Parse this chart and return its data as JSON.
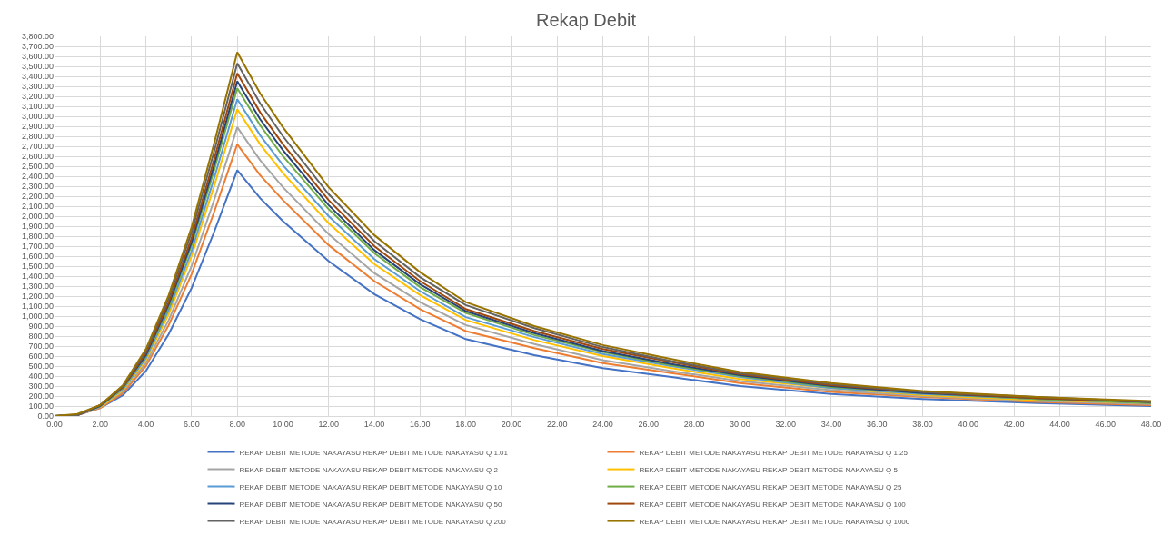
{
  "chart_data": {
    "type": "line",
    "title": "Rekap Debit",
    "x": [
      0,
      1,
      2,
      3,
      4,
      5,
      6,
      7,
      8,
      9,
      10,
      12,
      14,
      16,
      18,
      21,
      24,
      27,
      30,
      34,
      38,
      43,
      48
    ],
    "series": [
      {
        "name": "REKAP DEBIT METODE NAKAYASU REKAP DEBIT METODE NAKAYASU Q 1.01",
        "color": "#4472c4",
        "values": [
          0,
          10,
          80,
          210,
          450,
          820,
          1280,
          1850,
          2460,
          2180,
          1950,
          1550,
          1220,
          970,
          770,
          610,
          480,
          390,
          300,
          220,
          170,
          130,
          100
        ]
      },
      {
        "name": "REKAP DEBIT METODE NAKAYASU REKAP DEBIT METODE NAKAYASU Q 1.25",
        "color": "#ed7d31",
        "values": [
          0,
          10,
          80,
          230,
          500,
          910,
          1420,
          2050,
          2720,
          2410,
          2160,
          1710,
          1350,
          1070,
          850,
          680,
          530,
          430,
          330,
          240,
          190,
          140,
          110
        ]
      },
      {
        "name": "REKAP DEBIT METODE NAKAYASU REKAP DEBIT METODE NAKAYASU Q 2",
        "color": "#a5a5a5",
        "values": [
          0,
          10,
          90,
          250,
          530,
          960,
          1500,
          2170,
          2890,
          2560,
          2290,
          1820,
          1430,
          1140,
          910,
          720,
          560,
          450,
          350,
          260,
          200,
          150,
          120
        ]
      },
      {
        "name": "REKAP DEBIT METODE NAKAYASU REKAP DEBIT METODE NAKAYASU Q 5",
        "color": "#ffc000",
        "values": [
          null,
          null,
          90,
          260,
          560,
          1020,
          1600,
          2310,
          3070,
          2720,
          2430,
          1930,
          1520,
          1210,
          960,
          760,
          600,
          480,
          370,
          280,
          210,
          160,
          130
        ]
      },
      {
        "name": "REKAP DEBIT METODE NAKAYASU REKAP DEBIT METODE NAKAYASU Q 10",
        "color": "#5b9bd5",
        "values": [
          0,
          10,
          100,
          270,
          580,
          1060,
          1650,
          2390,
          3170,
          2810,
          2510,
          2000,
          1570,
          1250,
          990,
          790,
          620,
          500,
          390,
          280,
          220,
          170,
          130
        ]
      },
      {
        "name": "REKAP DEBIT METODE NAKAYASU REKAP DEBIT METODE NAKAYASU Q 25",
        "color": "#70ad47",
        "values": [
          0,
          10,
          100,
          280,
          600,
          1090,
          1710,
          2470,
          3280,
          2910,
          2600,
          2070,
          1630,
          1290,
          1030,
          810,
          640,
          510,
          400,
          290,
          230,
          170,
          130
        ]
      },
      {
        "name": "REKAP DEBIT METODE NAKAYASU REKAP DEBIT METODE NAKAYASU Q 50",
        "color": "#264478",
        "values": [
          0,
          10,
          100,
          290,
          610,
          1120,
          1740,
          2520,
          3350,
          2970,
          2660,
          2110,
          1660,
          1320,
          1050,
          830,
          650,
          520,
          410,
          300,
          230,
          180,
          140
        ]
      },
      {
        "name": "REKAP DEBIT METODE NAKAYASU REKAP DEBIT METODE NAKAYASU Q 100",
        "color": "#9e480e",
        "values": [
          0,
          10,
          110,
          290,
          630,
          1140,
          1780,
          2580,
          3430,
          3040,
          2720,
          2160,
          1700,
          1350,
          1070,
          850,
          670,
          540,
          420,
          310,
          240,
          180,
          140
        ]
      },
      {
        "name": "REKAP DEBIT METODE NAKAYASU REKAP DEBIT METODE NAKAYASU Q 200",
        "color": "#636363",
        "values": [
          0,
          10,
          110,
          300,
          650,
          1180,
          1840,
          2660,
          3530,
          3130,
          2800,
          2220,
          1750,
          1390,
          1110,
          880,
          690,
          550,
          430,
          320,
          240,
          190,
          140
        ]
      },
      {
        "name": "REKAP DEBIT METODE NAKAYASU REKAP DEBIT METODE NAKAYASU Q 1000",
        "color": "#997300",
        "values": [
          0,
          20,
          110,
          310,
          670,
          1210,
          1890,
          2740,
          3640,
          3230,
          2890,
          2290,
          1810,
          1440,
          1140,
          900,
          710,
          570,
          440,
          330,
          250,
          190,
          150
        ]
      }
    ],
    "xlim": [
      0,
      48
    ],
    "xticks": [
      {
        "value": 0,
        "label": "0.00"
      },
      {
        "value": 2,
        "label": "2.00"
      },
      {
        "value": 4,
        "label": "4.00"
      },
      {
        "value": 6,
        "label": "6.00"
      },
      {
        "value": 8,
        "label": "8.00"
      },
      {
        "value": 10,
        "label": "10.00"
      },
      {
        "value": 12,
        "label": "12.00"
      },
      {
        "value": 14,
        "label": "14.00"
      },
      {
        "value": 16,
        "label": "16.00"
      },
      {
        "value": 18,
        "label": "18.00"
      },
      {
        "value": 20,
        "label": "20.00"
      },
      {
        "value": 22,
        "label": "22.00"
      },
      {
        "value": 24,
        "label": "24.00"
      },
      {
        "value": 26,
        "label": "26.00"
      },
      {
        "value": 28,
        "label": "28.00"
      },
      {
        "value": 30,
        "label": "30.00"
      },
      {
        "value": 32,
        "label": "32.00"
      },
      {
        "value": 34,
        "label": "34.00"
      },
      {
        "value": 36,
        "label": "36.00"
      },
      {
        "value": 38,
        "label": "38.00"
      },
      {
        "value": 40,
        "label": "40.00"
      },
      {
        "value": 42,
        "label": "42.00"
      },
      {
        "value": 44,
        "label": "44.00"
      },
      {
        "value": 46,
        "label": "46.00"
      },
      {
        "value": 48,
        "label": "48.00"
      }
    ],
    "ylim": [
      0,
      3800
    ],
    "yticks": [
      {
        "value": 0,
        "label": "0.00"
      },
      {
        "value": 100,
        "label": "100.00"
      },
      {
        "value": 200,
        "label": "200.00"
      },
      {
        "value": 300,
        "label": "300.00"
      },
      {
        "value": 400,
        "label": "400.00"
      },
      {
        "value": 500,
        "label": "500.00"
      },
      {
        "value": 600,
        "label": "600.00"
      },
      {
        "value": 700,
        "label": "700.00"
      },
      {
        "value": 800,
        "label": "800.00"
      },
      {
        "value": 900,
        "label": "900.00"
      },
      {
        "value": 1000,
        "label": "1,000.00"
      },
      {
        "value": 1100,
        "label": "1,100.00"
      },
      {
        "value": 1200,
        "label": "1,200.00"
      },
      {
        "value": 1300,
        "label": "1,300.00"
      },
      {
        "value": 1400,
        "label": "1,400.00"
      },
      {
        "value": 1500,
        "label": "1,500.00"
      },
      {
        "value": 1600,
        "label": "1,600.00"
      },
      {
        "value": 1700,
        "label": "1,700.00"
      },
      {
        "value": 1800,
        "label": "1,800.00"
      },
      {
        "value": 1900,
        "label": "1,900.00"
      },
      {
        "value": 2000,
        "label": "2,000.00"
      },
      {
        "value": 2100,
        "label": "2,100.00"
      },
      {
        "value": 2200,
        "label": "2,200.00"
      },
      {
        "value": 2300,
        "label": "2,300.00"
      },
      {
        "value": 2400,
        "label": "2,400.00"
      },
      {
        "value": 2500,
        "label": "2,500.00"
      },
      {
        "value": 2600,
        "label": "2,600.00"
      },
      {
        "value": 2700,
        "label": "2,700.00"
      },
      {
        "value": 2800,
        "label": "2,800.00"
      },
      {
        "value": 2900,
        "label": "2,900.00"
      },
      {
        "value": 3000,
        "label": "3,000.00"
      },
      {
        "value": 3100,
        "label": "3,100.00"
      },
      {
        "value": 3200,
        "label": "3,200.00"
      },
      {
        "value": 3300,
        "label": "3,300.00"
      },
      {
        "value": 3400,
        "label": "3,400.00"
      },
      {
        "value": 3500,
        "label": "3,500.00"
      },
      {
        "value": 3600,
        "label": "3,600.00"
      },
      {
        "value": 3700,
        "label": "3,700.00"
      },
      {
        "value": 3800,
        "label": "3,800.00"
      }
    ],
    "grid": true,
    "legend": "bottom",
    "marker": "none",
    "line_style": "solid"
  }
}
